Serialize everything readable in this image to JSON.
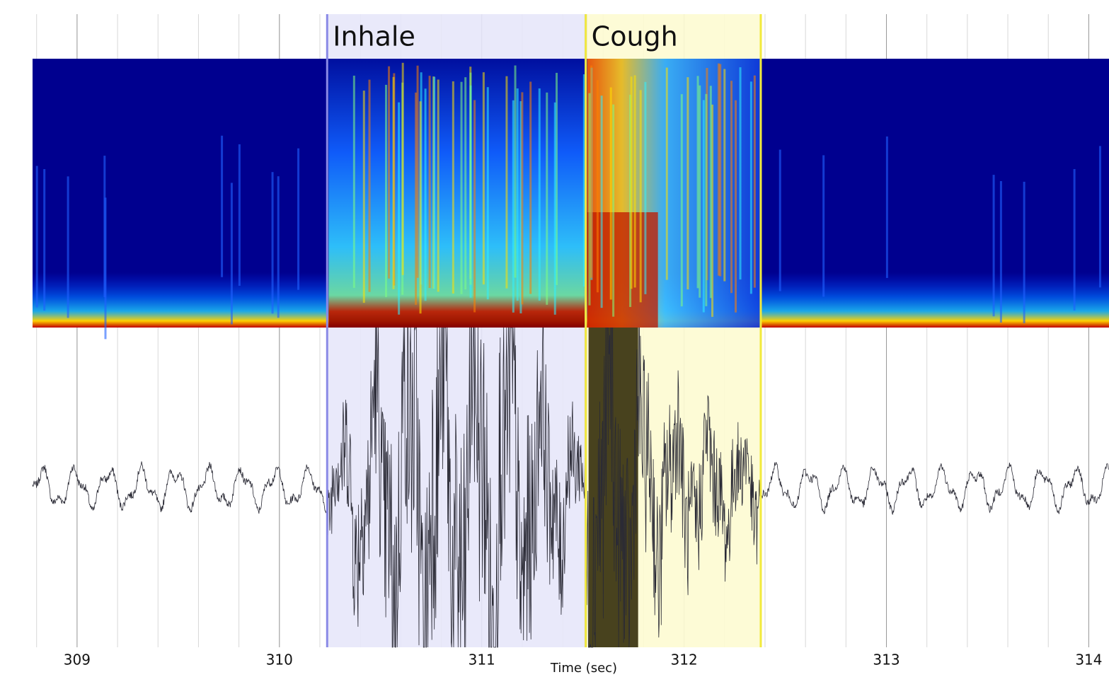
{
  "timeline": {
    "axis_label": "Time (sec)",
    "xlim": [
      308.78,
      314.1
    ],
    "ticks": [
      309,
      310,
      311,
      312,
      313,
      314
    ],
    "regions": [
      {
        "label": "Inhale",
        "start": 310.236,
        "end": 311.514,
        "fill": "#e7e7fa",
        "color": "#8a8ae6"
      },
      {
        "label": "Cough",
        "start": 311.514,
        "end": 312.379,
        "fill": "#fdfbd2",
        "color": "#f2ea3c"
      }
    ]
  }
}
